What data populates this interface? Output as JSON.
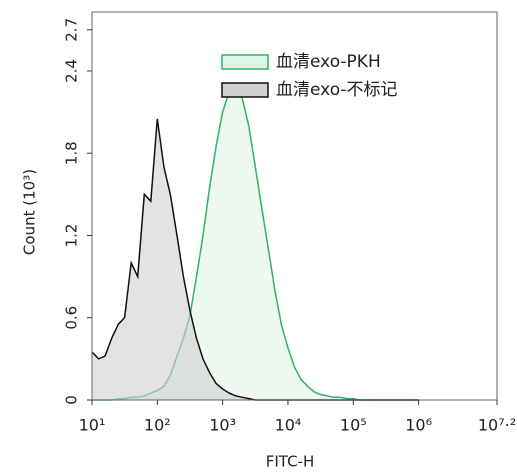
{
  "chart_data": {
    "type": "area",
    "xlabel": "FITC-H",
    "ylabel": "Count (10³)",
    "xscale": "log",
    "xlim": [
      10,
      15848931.9
    ],
    "xticks": [
      {
        "value": 10,
        "label": "10¹"
      },
      {
        "value": 100,
        "label": "10²"
      },
      {
        "value": 1000,
        "label": "10³"
      },
      {
        "value": 10000,
        "label": "10⁴"
      },
      {
        "value": 100000,
        "label": "10⁵"
      },
      {
        "value": 1000000,
        "label": "10⁶"
      },
      {
        "value": 15848931.9,
        "label": "10⁷·²"
      }
    ],
    "ylim": [
      0,
      2.83
    ],
    "yticks": [
      0,
      0.6,
      1.2,
      1.8,
      2.4,
      2.7
    ],
    "legend": "upper right",
    "x": [
      10,
      12.6,
      15.8,
      20,
      25.1,
      31.6,
      39.8,
      50.1,
      63.1,
      79.4,
      100,
      126,
      158,
      200,
      251,
      316,
      398,
      501,
      631,
      794,
      1000,
      1259,
      1585,
      1995,
      2512,
      3162,
      3981,
      5012,
      6310,
      7943,
      10000,
      12589,
      15849,
      19953,
      25119,
      31623,
      39811,
      50119,
      63096,
      79433,
      100000,
      125893,
      158489,
      199526,
      251189,
      316228,
      398107,
      501187,
      630957,
      794328,
      1000000
    ],
    "series": [
      {
        "name": "血清exo-PKH",
        "color": "#2db36a",
        "fill": "#dff3e6",
        "values": [
          0,
          0,
          0,
          0,
          0.01,
          0.01,
          0.02,
          0.02,
          0.03,
          0.05,
          0.07,
          0.1,
          0.18,
          0.32,
          0.45,
          0.62,
          0.9,
          1.2,
          1.55,
          1.85,
          2.1,
          2.25,
          2.3,
          2.2,
          2.0,
          1.7,
          1.4,
          1.1,
          0.8,
          0.55,
          0.38,
          0.24,
          0.15,
          0.1,
          0.06,
          0.04,
          0.03,
          0.02,
          0.02,
          0.01,
          0.01,
          0,
          0,
          0,
          0,
          0,
          0,
          0,
          0,
          0,
          0
        ]
      },
      {
        "name": "血清exo-不标记",
        "color": "#111111",
        "fill": "#d0d0d0",
        "values": [
          0.35,
          0.3,
          0.32,
          0.45,
          0.55,
          0.6,
          1.0,
          0.9,
          1.5,
          1.45,
          2.05,
          1.7,
          1.5,
          1.2,
          0.9,
          0.65,
          0.45,
          0.3,
          0.2,
          0.12,
          0.08,
          0.05,
          0.03,
          0.02,
          0.01,
          0,
          0,
          0,
          0,
          0,
          0,
          0,
          0,
          0,
          0,
          0,
          0,
          0,
          0,
          0,
          0,
          0,
          0,
          0,
          0,
          0,
          0,
          0,
          0,
          0,
          0
        ]
      }
    ]
  }
}
